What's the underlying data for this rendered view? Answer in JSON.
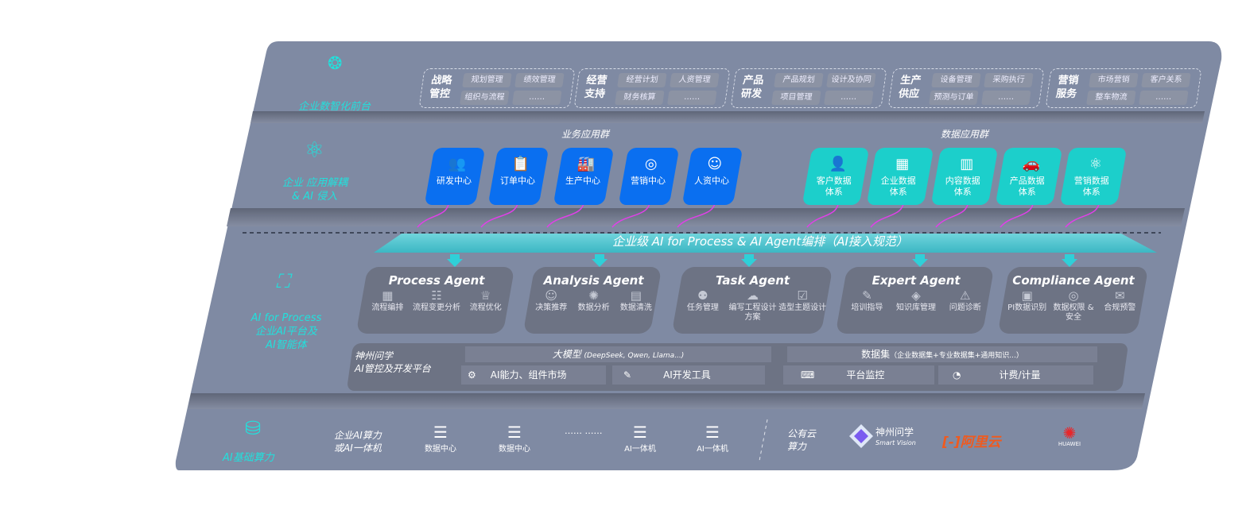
{
  "layers": {
    "front": "企业数智化前台",
    "apps": [
      "企业 应用解耦",
      "& AI 侵入"
    ],
    "ai": [
      "AI for Process",
      "企业AI平台及",
      "AI智能体"
    ],
    "compute": "AI基础算力"
  },
  "front_groups": [
    {
      "title": "战略管控",
      "items": [
        "规划管理",
        "绩效管理",
        "组织与流程",
        "……"
      ]
    },
    {
      "title": "经营支持",
      "items": [
        "经营计划",
        "人资管理",
        "财务核算",
        "……"
      ]
    },
    {
      "title": "产品研发",
      "items": [
        "产品规划",
        "设计及协同",
        "项目管理",
        "……"
      ]
    },
    {
      "title": "生产供应",
      "items": [
        "设备管理",
        "采购执行",
        "预测与订单",
        "……"
      ]
    },
    {
      "title": "营销服务",
      "items": [
        "市场营销",
        "客户关系",
        "整车物流",
        "……"
      ]
    }
  ],
  "biz_group": {
    "title": "业务应用群",
    "items": [
      "研发中心",
      "订单中心",
      "生产中心",
      "营销中心",
      "人资中心"
    ]
  },
  "data_group": {
    "title": "数据应用群",
    "items": [
      "客户数据体系",
      "企业数据体系",
      "内容数据体系",
      "产品数据体系",
      "营销数据体系"
    ]
  },
  "banner": "企业级 AI for Process & AI Agent编排（AI接入规范）",
  "agents": [
    {
      "name": "Process Agent",
      "items": [
        "流程编排",
        "流程变更分析",
        "流程优化"
      ]
    },
    {
      "name": "Analysis Agent",
      "items": [
        "决策推荐",
        "数据分析",
        "数据清洗"
      ]
    },
    {
      "name": "Task Agent",
      "items": [
        "任务管理",
        "编写工程设计方案",
        "造型主题设计"
      ]
    },
    {
      "name": "Expert Agent",
      "items": [
        "培训指导",
        "知识库管理",
        "问题诊断"
      ]
    },
    {
      "name": "Compliance Agent",
      "items": [
        "PI数据识别",
        "数据权限 & 安全",
        "合规预警"
      ]
    }
  ],
  "platform": {
    "title": [
      "神州问学",
      "AI管控及开发平台"
    ],
    "model": "大模型",
    "model_note": "(DeepSeek, Qwen, Llama...)",
    "dataset": "数据集",
    "dataset_note": "（企业数据集+专业数据集+通用知识...）",
    "tools": [
      "AI能力、组件市场",
      "AI开发工具",
      "平台监控",
      "计费/计量"
    ]
  },
  "compute": {
    "private_label": [
      "企业AI算力",
      "或AI一体机"
    ],
    "servers": [
      "数据中心",
      "数据中心",
      "AI一体机",
      "AI一体机"
    ],
    "ellipsis": "…… ……",
    "public_label": [
      "公有云",
      "算力"
    ],
    "logos": {
      "szwx": "神州问学",
      "szwx_en": "Smart Vision",
      "aliyun": "阿里云",
      "huawei": "HUAWEI"
    }
  },
  "colors": {
    "panel": "#7f8aa3",
    "cyan": "#22e0dc",
    "blue": "#0a6ff0",
    "teal": "#1ccfcb",
    "magenta": "#e040e8",
    "aliyun": "#f05a1e",
    "huawei": "#e8262a"
  }
}
